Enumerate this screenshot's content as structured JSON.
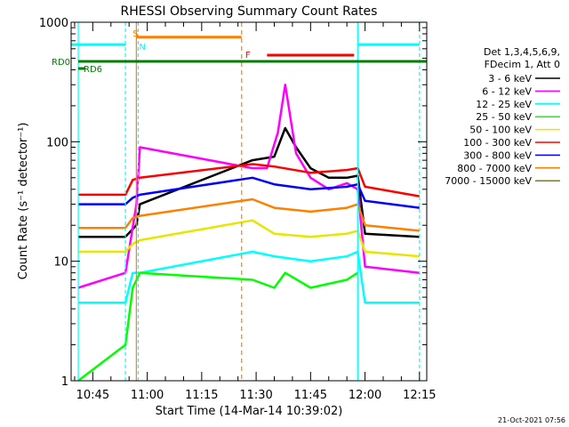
{
  "chart_data": {
    "type": "line",
    "title": "RHESSI Observing Summary Count Rates",
    "xlabel": "Start Time (14-Mar-14 10:39:02)",
    "ylabel": "Count Rate (s⁻¹ detector⁻¹)",
    "x_range": [
      "10:39:02",
      "12:17:00"
    ],
    "xticks": [
      "10:45",
      "11:00",
      "11:15",
      "11:30",
      "11:45",
      "12:00",
      "12:15"
    ],
    "ylim": [
      1,
      1000
    ],
    "yscale": "log",
    "yticks": [
      "1",
      "10",
      "100",
      "1000"
    ],
    "grid": false,
    "legend_position": "right",
    "legend_header": [
      "Det 1,3,4,5,6,9,",
      "FDecim 1, Att 0"
    ],
    "footer_date": "21-Oct-2021 07:56",
    "series": [
      {
        "name": "3 - 6 keV",
        "color": "#000000",
        "x": [
          "10:41",
          "10:54",
          "10:57",
          "10:58",
          "11:29",
          "11:35",
          "11:38",
          "11:41",
          "11:45",
          "11:50",
          "11:55",
          "11:58",
          "12:00",
          "12:15"
        ],
        "y": [
          16,
          16,
          20,
          30,
          70,
          75,
          130,
          90,
          60,
          50,
          50,
          52,
          17,
          16
        ]
      },
      {
        "name": "6 - 12 keV",
        "color": "#ff00ff",
        "x": [
          "10:41",
          "10:54",
          "10:57",
          "10:58",
          "11:29",
          "11:33",
          "11:36",
          "11:38",
          "11:41",
          "11:45",
          "11:50",
          "11:55",
          "11:58",
          "12:00",
          "12:15"
        ],
        "y": [
          6,
          8,
          30,
          90,
          60,
          60,
          120,
          300,
          80,
          50,
          40,
          45,
          40,
          9,
          8
        ]
      },
      {
        "name": "12 - 25 keV",
        "color": "#00ffff",
        "x": [
          "10:41",
          "10:54",
          "10:56",
          "10:58",
          "11:29",
          "11:35",
          "11:45",
          "11:55",
          "11:58",
          "12:00",
          "12:15"
        ],
        "y": [
          4.5,
          4.5,
          8,
          8,
          12,
          11,
          10,
          11,
          12,
          4.5,
          4.5
        ]
      },
      {
        "name": "25 - 50 keV",
        "color": "#00ff00",
        "x": [
          "10:41",
          "10:54",
          "10:56",
          "10:58",
          "11:29",
          "11:35",
          "11:38",
          "11:45",
          "11:55",
          "11:58"
        ],
        "y": [
          1,
          2,
          6,
          8,
          7,
          6,
          8,
          6,
          7,
          8
        ]
      },
      {
        "name": "50 - 100 keV",
        "color": "#e6e600",
        "x": [
          "10:41",
          "10:54",
          "10:56",
          "10:58",
          "11:29",
          "11:35",
          "11:45",
          "11:55",
          "11:58",
          "12:00",
          "12:15"
        ],
        "y": [
          12,
          12,
          14,
          15,
          22,
          17,
          16,
          17,
          18,
          12,
          11
        ]
      },
      {
        "name": "100 - 300 keV",
        "color": "#ff0000",
        "x": [
          "10:41",
          "10:54",
          "10:56",
          "10:58",
          "11:29",
          "11:35",
          "11:45",
          "11:55",
          "11:58",
          "12:00",
          "12:15"
        ],
        "y": [
          36,
          36,
          48,
          50,
          65,
          62,
          55,
          58,
          60,
          42,
          35
        ]
      },
      {
        "name": "300 - 800 keV",
        "color": "#0000ff",
        "x": [
          "10:41",
          "10:54",
          "10:56",
          "10:58",
          "11:29",
          "11:35",
          "11:45",
          "11:55",
          "11:58",
          "12:00",
          "12:15"
        ],
        "y": [
          30,
          30,
          34,
          36,
          50,
          44,
          40,
          42,
          44,
          32,
          28
        ]
      },
      {
        "name": "800 - 7000 keV",
        "color": "#ff8000",
        "x": [
          "10:41",
          "10:54",
          "10:56",
          "10:58",
          "11:29",
          "11:35",
          "11:45",
          "11:55",
          "11:58",
          "12:00",
          "12:15"
        ],
        "y": [
          19,
          19,
          23,
          24,
          33,
          28,
          26,
          28,
          30,
          20,
          18
        ]
      },
      {
        "name": "7000 - 15000 keV",
        "color": "#808000",
        "x": [],
        "y": []
      }
    ],
    "markers": [
      {
        "label": "S",
        "color": "#ff8000"
      },
      {
        "label": "N",
        "color": "#00ffff"
      },
      {
        "label": "F",
        "color": "#ff0000"
      },
      {
        "label": "RD0",
        "color": "#008000"
      },
      {
        "label": "RD6",
        "color": "#008000"
      }
    ]
  }
}
